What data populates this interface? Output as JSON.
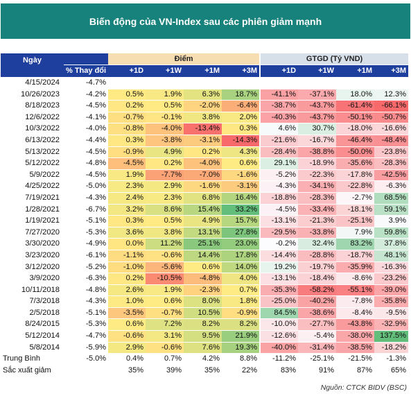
{
  "title": "Biến động của VN-Index sau các phiên giảm mạnh",
  "headers": {
    "date": "Ngày",
    "pct_change": "% Thay đổi",
    "points_group": "Điểm",
    "volume_group": "GTGD (Tỷ VND)",
    "periods": [
      "+1D",
      "+1W",
      "+1M",
      "+3M"
    ]
  },
  "rows": [
    {
      "date": "4/15/2024",
      "pct": "-4.7%",
      "points": [
        "",
        "",
        "",
        ""
      ],
      "volume": [
        "",
        "",
        "",
        ""
      ]
    },
    {
      "date": "10/26/2023",
      "pct": "-4.2%",
      "points": [
        "0.5%",
        "1.9%",
        "6.3%",
        "18.7%"
      ],
      "volume": [
        "-41.1%",
        "-37.1%",
        "18.0%",
        "12.3%"
      ]
    },
    {
      "date": "8/18/2023",
      "pct": "-4.5%",
      "points": [
        "0.2%",
        "0.5%",
        "-2.0%",
        "-6.4%"
      ],
      "volume": [
        "-38.7%",
        "-43.7%",
        "-61.4%",
        "-66.1%"
      ]
    },
    {
      "date": "12/6/2022",
      "pct": "-4.1%",
      "points": [
        "-0.7%",
        "-0.1%",
        "3.8%",
        "2.0%"
      ],
      "volume": [
        "-40.3%",
        "-43.7%",
        "-50.1%",
        "-50.7%"
      ]
    },
    {
      "date": "10/3/2022",
      "pct": "-4.0%",
      "points": [
        "-0.8%",
        "-4.0%",
        "-13.4%",
        "0.3%"
      ],
      "volume": [
        "4.6%",
        "30.7%",
        "-18.0%",
        "-16.6%"
      ]
    },
    {
      "date": "6/13/2022",
      "pct": "-4.4%",
      "points": [
        "0.3%",
        "-3.8%",
        "-3.1%",
        "-14.3%"
      ],
      "volume": [
        "-21.6%",
        "-16.7%",
        "-46.4%",
        "-48.4%"
      ]
    },
    {
      "date": "5/13/2022",
      "pct": "-4.5%",
      "points": [
        "-0.9%",
        "4.9%",
        "0.2%",
        "4.3%"
      ],
      "volume": [
        "-28.4%",
        "-38.8%",
        "-50.0%",
        "-23.8%"
      ]
    },
    {
      "date": "5/12/2022",
      "pct": "-4.8%",
      "points": [
        "-4.5%",
        "0.2%",
        "-4.0%",
        "0.6%"
      ],
      "volume": [
        "29.1%",
        "-18.9%",
        "-35.6%",
        "-28.3%"
      ]
    },
    {
      "date": "5/9/2022",
      "pct": "-4.5%",
      "points": [
        "1.9%",
        "-7.7%",
        "-7.0%",
        "-1.6%"
      ],
      "volume": [
        "-5.2%",
        "-22.3%",
        "-17.8%",
        "-42.5%"
      ]
    },
    {
      "date": "4/25/2022",
      "pct": "-5.0%",
      "points": [
        "2.3%",
        "2.9%",
        "-1.6%",
        "-3.1%"
      ],
      "volume": [
        "-4.3%",
        "-34.1%",
        "-22.8%",
        "-6.3%"
      ]
    },
    {
      "date": "7/19/2021",
      "pct": "-4.3%",
      "points": [
        "2.4%",
        "2.3%",
        "6.8%",
        "16.4%"
      ],
      "volume": [
        "-18.8%",
        "-28.3%",
        "-2.7%",
        "68.5%"
      ]
    },
    {
      "date": "1/28/2021",
      "pct": "-6.7%",
      "points": [
        "3.2%",
        "8.6%",
        "15.4%",
        "33.2%"
      ],
      "volume": [
        "-4.5%",
        "-33.4%",
        "-18.1%",
        "59.1%"
      ]
    },
    {
      "date": "1/19/2021",
      "pct": "-5.1%",
      "points": [
        "0.3%",
        "0.5%",
        "4.9%",
        "15.7%"
      ],
      "volume": [
        "-13.1%",
        "-21.3%",
        "-25.1%",
        "3.9%"
      ]
    },
    {
      "date": "7/27/2020",
      "pct": "-5.3%",
      "points": [
        "3.6%",
        "3.8%",
        "13.1%",
        "27.8%"
      ],
      "volume": [
        "-29.5%",
        "-33.8%",
        "7.9%",
        "59.8%"
      ]
    },
    {
      "date": "3/30/2020",
      "pct": "-4.9%",
      "points": [
        "0.0%",
        "11.2%",
        "25.1%",
        "23.0%"
      ],
      "volume": [
        "-0.2%",
        "32.4%",
        "83.2%",
        "37.8%"
      ]
    },
    {
      "date": "3/23/2020",
      "pct": "-6.1%",
      "points": [
        "-1.1%",
        "-0.6%",
        "14.4%",
        "17.8%"
      ],
      "volume": [
        "-14.4%",
        "-28.8%",
        "-18.7%",
        "48.1%"
      ]
    },
    {
      "date": "3/12/2020",
      "pct": "-5.2%",
      "points": [
        "-1.0%",
        "-5.6%",
        "0.6%",
        "14.0%"
      ],
      "volume": [
        "19.2%",
        "-19.7%",
        "-35.9%",
        "-16.3%"
      ]
    },
    {
      "date": "3/9/2020",
      "pct": "-6.3%",
      "points": [
        "0.2%",
        "-10.5%",
        "-4.8%",
        "4.0%"
      ],
      "volume": [
        "-13.1%",
        "-18.4%",
        "-8.6%",
        "-23.2%"
      ]
    },
    {
      "date": "10/11/2018",
      "pct": "-4.8%",
      "points": [
        "2.6%",
        "1.9%",
        "-2.3%",
        "0.7%"
      ],
      "volume": [
        "-35.3%",
        "-58.2%",
        "-55.1%",
        "-39.0%"
      ]
    },
    {
      "date": "7/3/2018",
      "pct": "-4.3%",
      "points": [
        "1.0%",
        "0.6%",
        "8.0%",
        "1.8%"
      ],
      "volume": [
        "-25.0%",
        "-40.2%",
        "-7.8%",
        "-35.8%"
      ]
    },
    {
      "date": "2/5/2018",
      "pct": "-5.1%",
      "points": [
        "-3.5%",
        "-0.7%",
        "10.5%",
        "-0.9%"
      ],
      "volume": [
        "84.5%",
        "-38.6%",
        "-8.4%",
        "-9.5%"
      ]
    },
    {
      "date": "8/24/2015",
      "pct": "-5.3%",
      "points": [
        "0.6%",
        "7.2%",
        "8.2%",
        "8.2%"
      ],
      "volume": [
        "-10.0%",
        "-27.7%",
        "-43.8%",
        "-32.9%"
      ]
    },
    {
      "date": "5/12/2014",
      "pct": "-4.7%",
      "points": [
        "-0.6%",
        "3.1%",
        "9.5%",
        "21.9%"
      ],
      "volume": [
        "-12.6%",
        "-5.4%",
        "-38.0%",
        "137.5%"
      ]
    },
    {
      "date": "5/8/2014",
      "pct": "-5.9%",
      "points": [
        "2.9%",
        "-0.6%",
        "7.6%",
        "19.3%"
      ],
      "volume": [
        "-40.0%",
        "-31.4%",
        "-38.5%",
        "-18.2%"
      ]
    }
  ],
  "summary": [
    {
      "label": "Trung Bình",
      "pct": "-5.0%",
      "points": [
        "0.4%",
        "0.7%",
        "4.2%",
        "8.8%"
      ],
      "volume": [
        "-11.2%",
        "-25.1%",
        "-21.5%",
        "-1.3%"
      ]
    },
    {
      "label": "Sắc xuất giảm",
      "pct": "",
      "points": [
        "35%",
        "39%",
        "35%",
        "22%"
      ],
      "volume": [
        "83%",
        "91%",
        "87%",
        "65%"
      ]
    }
  ],
  "source": "Nguồn: CTCK BIDV (BSC)"
}
